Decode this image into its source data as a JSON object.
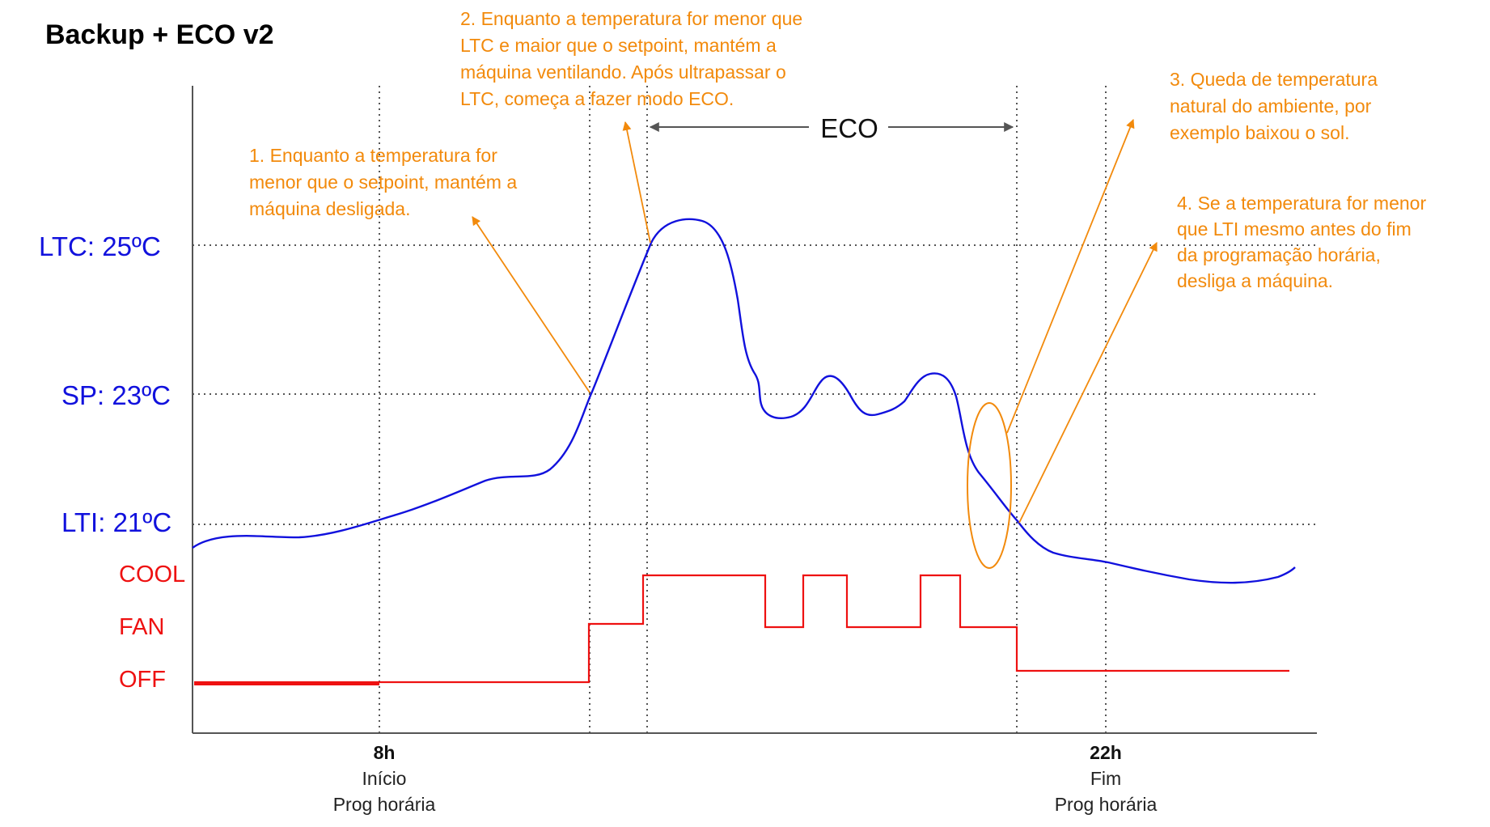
{
  "title": "Backup + ECO v2",
  "colors": {
    "temperature": "#1111dd",
    "state": "#ee1111",
    "note": "#f28a0c",
    "axis": "#555555",
    "grid": "#555555",
    "thresholds": "#1111dd"
  },
  "thresholds": [
    {
      "key": "ltc",
      "label": "LTC: 25ºC",
      "value": 25
    },
    {
      "key": "sp",
      "label": "SP: 23ºC",
      "value": 23
    },
    {
      "key": "lti",
      "label": "LTI: 21ºC",
      "value": 21
    }
  ],
  "states": [
    {
      "key": "cool",
      "label": "COOL"
    },
    {
      "key": "fan",
      "label": "FAN"
    },
    {
      "key": "off",
      "label": "OFF"
    }
  ],
  "time_markers": [
    {
      "key": "start",
      "title": "8h",
      "line1": "Início",
      "line2": "Prog horária"
    },
    {
      "key": "end",
      "title": "22h",
      "line1": "Fim",
      "line2": "Prog horária"
    }
  ],
  "eco_label": "ECO",
  "notes": [
    {
      "key": "note1",
      "lines": [
        "1. Enquanto a temperatura for",
        "menor que o setpoint, mantém a",
        "máquina desligada."
      ]
    },
    {
      "key": "note2",
      "lines": [
        "2. Enquanto a temperatura for menor que",
        "LTC e maior que o setpoint, mantém a",
        "máquina ventilando. Após ultrapassar o",
        "LTC, começa a fazer modo ECO."
      ]
    },
    {
      "key": "note3",
      "lines": [
        "3. Queda de temperatura",
        "natural do ambiente, por",
        "exemplo baixou o sol."
      ]
    },
    {
      "key": "note4",
      "lines": [
        "4. Se a temperatura for menor",
        "que LTI mesmo antes do fim",
        "da programação horária,",
        "desliga a máquina."
      ]
    }
  ]
}
